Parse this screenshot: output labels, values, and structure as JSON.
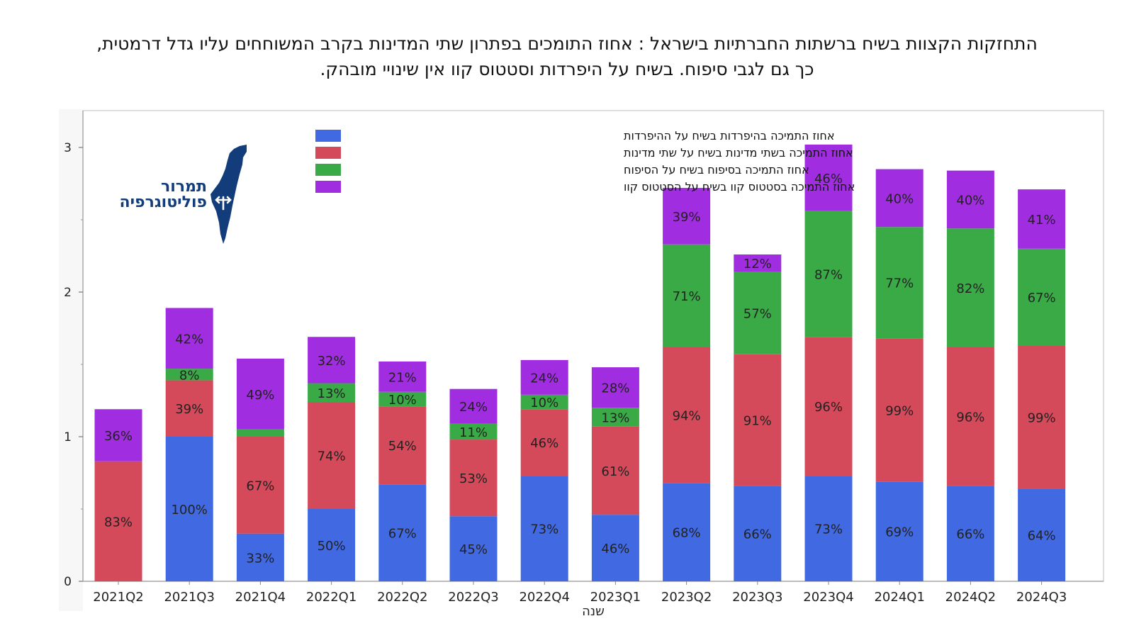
{
  "title": {
    "line1": "התחזקות הקצוות בשיח ברשתות החברתיות בישראל : אחוז התומכים בפתרון שתי המדינות בקרב המשוחחים עליו גדל דרמטית,",
    "line2": "כך גם לגבי סיפוח. בשיח על היפרדות וסטטוס קוו אין שינויי מובהק."
  },
  "logo": {
    "line1": "תמרור",
    "line2": "פוליטוגרפיה",
    "icon": "israel-map-icon"
  },
  "chart_data": {
    "type": "bar",
    "stacked": true,
    "categories": [
      "2021Q2",
      "2021Q3",
      "2021Q4",
      "2022Q1",
      "2022Q2",
      "2022Q3",
      "2022Q4",
      "2023Q1",
      "2023Q2",
      "2023Q3",
      "2023Q4",
      "2024Q1",
      "2024Q2",
      "2024Q3"
    ],
    "ylim": [
      0,
      3.25
    ],
    "yticks": [
      "0",
      "1",
      "2",
      "3"
    ],
    "ytick_values": [
      0,
      1,
      2,
      3
    ],
    "xlabel": "שנה",
    "ylabel": "",
    "grid": false,
    "legend_position": "top-center",
    "series": [
      {
        "name": "אחוז התמיכה בהיפרדות  בשיח על ההיפרדות",
        "color": "#4169e1",
        "values": [
          0,
          1.0,
          0.33,
          0.5,
          0.67,
          0.45,
          0.73,
          0.46,
          0.68,
          0.66,
          0.73,
          0.69,
          0.66,
          0.64
        ],
        "labels": [
          "",
          "100%",
          "33%",
          "50%",
          "67%",
          "45%",
          "73%",
          "46%",
          "68%",
          "66%",
          "73%",
          "69%",
          "66%",
          "64%"
        ]
      },
      {
        "name": "אחוז התמיכה בשתי מדינות בשיח על שתי מדינות",
        "color": "#d44a5a",
        "values": [
          0.83,
          0.39,
          0.67,
          0.74,
          0.54,
          0.53,
          0.46,
          0.61,
          0.94,
          0.91,
          0.96,
          0.99,
          0.96,
          0.99
        ],
        "labels": [
          "83%",
          "39%",
          "67%",
          "74%",
          "54%",
          "53%",
          "46%",
          "61%",
          "94%",
          "91%",
          "96%",
          "99%",
          "96%",
          "99%"
        ]
      },
      {
        "name": "אחוז התמיכה בסיפוח בשיח על הסיפוח",
        "color": "#3aaa47",
        "values": [
          0,
          0.08,
          0.05,
          0.13,
          0.1,
          0.11,
          0.1,
          0.13,
          0.71,
          0.57,
          0.87,
          0.77,
          0.82,
          0.67
        ],
        "labels": [
          "",
          "8%",
          "",
          "13%",
          "10%",
          "11%",
          "10%",
          "13%",
          "71%",
          "57%",
          "87%",
          "77%",
          "82%",
          "67%"
        ]
      },
      {
        "name": "אחוז התמיכה בסטטוס קוו בשיח על הסטטוס קוו",
        "color": "#a02de0",
        "values": [
          0.36,
          0.42,
          0.49,
          0.32,
          0.21,
          0.24,
          0.24,
          0.28,
          0.39,
          0.12,
          0.46,
          0.4,
          0.4,
          0.41
        ],
        "labels": [
          "36%",
          "42%",
          "49%",
          "32%",
          "21%",
          "24%",
          "24%",
          "28%",
          "39%",
          "12%",
          "46%",
          "40%",
          "40%",
          "41%"
        ]
      }
    ]
  }
}
